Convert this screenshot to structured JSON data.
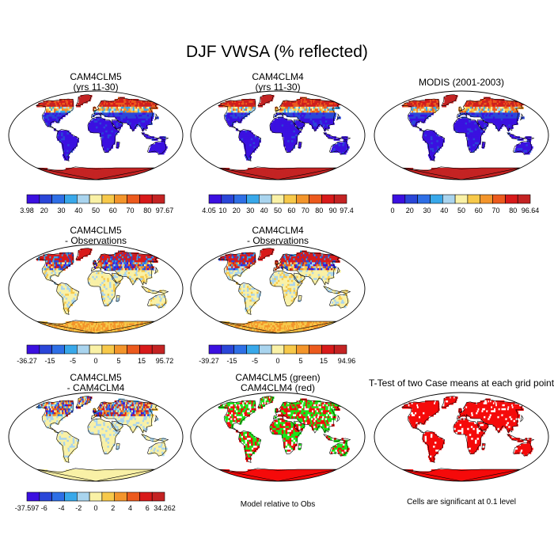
{
  "title": "DJF VWSA (% reflected)",
  "palettes": {
    "abs": [
      "#3b10e0",
      "#2a46d8",
      "#2e6fe6",
      "#38a8ea",
      "#a9d4ee",
      "#f9f1a6",
      "#f7c94a",
      "#f3952b",
      "#ec5a1d",
      "#d81a1a",
      "#c42323"
    ],
    "diff": [
      "#3b10e0",
      "#2a46d8",
      "#2e6fe6",
      "#38a8ea",
      "#a9d4ee",
      "#f9f1a6",
      "#f7c94a",
      "#f3952b",
      "#ec5a1d",
      "#d81a1a",
      "#c42323"
    ],
    "sig_red": "#f50a0a",
    "sig_green": "#19e619",
    "land_mid": "#e9d27a"
  },
  "panels": [
    {
      "id": "p1",
      "title1": "CAM4CLM5",
      "title2": "(yrs 11-30)",
      "kind": "abs",
      "cbar_labels": [
        "3.98",
        "20",
        "30",
        "40",
        "50",
        "60",
        "70",
        "80",
        "97.67"
      ]
    },
    {
      "id": "p2",
      "title1": "CAM4CLM4",
      "title2": "(yrs 11-30)",
      "kind": "abs",
      "cbar_labels": [
        "4.05",
        "10",
        "20",
        "30",
        "40",
        "50",
        "60",
        "70",
        "80",
        "90",
        "97.4"
      ]
    },
    {
      "id": "p3",
      "title1": "MODIS (2001-2003)",
      "title2": "",
      "kind": "abs",
      "cbar_labels": [
        "0",
        "20",
        "30",
        "40",
        "50",
        "60",
        "70",
        "80",
        "96.64"
      ]
    },
    {
      "id": "p4",
      "title1": "CAM4CLM5",
      "title2": "- Observations",
      "kind": "diff",
      "cbar_labels": [
        "-36.27",
        "-15",
        "-5",
        "0",
        "5",
        "15",
        "95.72"
      ]
    },
    {
      "id": "p5",
      "title1": "CAM4CLM4",
      "title2": "- Observations",
      "kind": "diff",
      "cbar_labels": [
        "-39.27",
        "-15",
        "-5",
        "0",
        "5",
        "15",
        "94.96"
      ]
    },
    {
      "id": "p7",
      "title1": "CAM4CLM5",
      "title2": "- CAM4CLM4",
      "kind": "diff2",
      "cbar_labels": [
        "-37.597",
        "-6",
        "-4",
        "-2",
        "0",
        "2",
        "4",
        "6",
        "34.262"
      ]
    },
    {
      "id": "p8",
      "title1": "CAM4CLM5 (green)",
      "title2": "CAM4CLM4 (red)",
      "kind": "sig2",
      "note": "Model relative to Obs"
    },
    {
      "id": "p9",
      "title1": "T-Test of two Case means at each grid point",
      "title2": "",
      "kind": "sig1",
      "note": "Cells are significant at 0.1 level"
    }
  ]
}
